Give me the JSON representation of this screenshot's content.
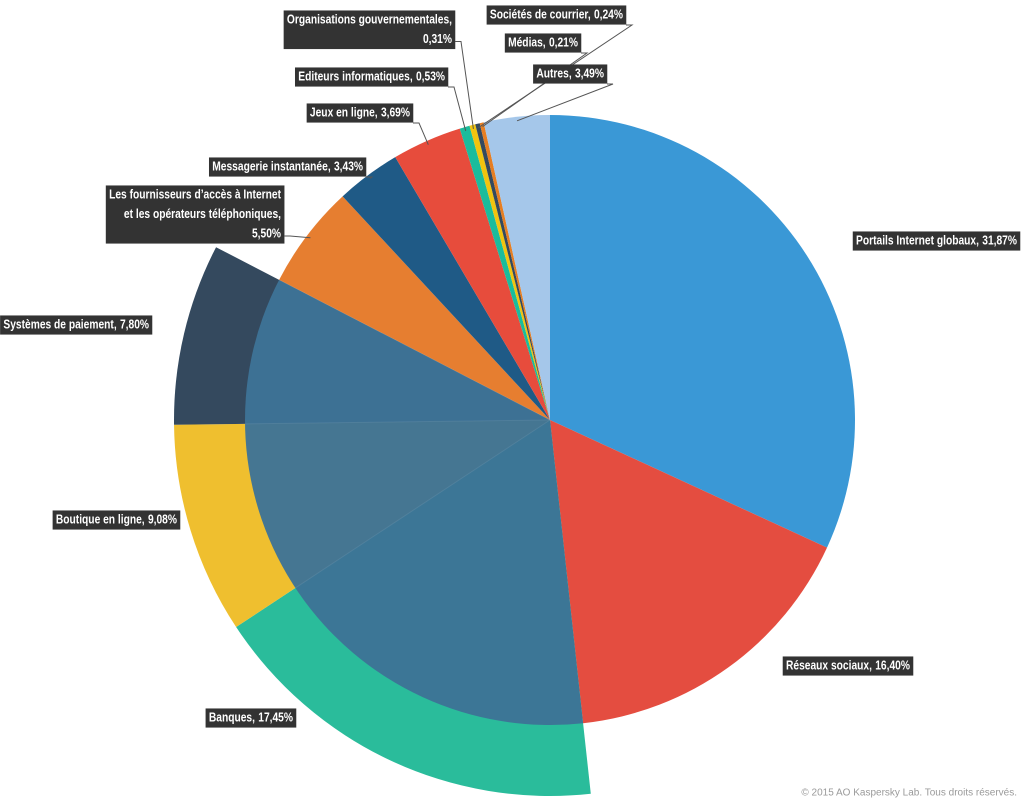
{
  "chart_data": {
    "type": "pie",
    "categories": [
      "Portails Internet globaux,",
      "Réseaux sociaux,",
      "Banques,",
      "Boutique en ligne,",
      "Systèmes de paiement,",
      "Les fournisseurs d’accès à Internet\net les opérateurs téléphoniques,",
      "Messagerie instantanée,",
      "Jeux en ligne,",
      "Editeurs informatiques,",
      "Organisations gouvernementales,",
      "Sociétés de courrier,",
      "Médias,",
      "Autres,"
    ],
    "values": [
      31.87,
      16.4,
      17.45,
      9.08,
      7.8,
      5.5,
      3.43,
      3.69,
      0.53,
      0.31,
      0.24,
      0.21,
      3.49
    ],
    "value_labels": [
      "31,87%",
      "16,40%",
      "17,45%",
      "9,08%",
      "7,80%",
      "5,50%",
      "3,43%",
      "3,69%",
      "0,53%",
      "0,31%",
      "0,24%",
      "0,21%",
      "3,49%"
    ],
    "colors": [
      "#3a98d6",
      "#e44d40",
      "#2abc9b",
      "#efbf2f",
      "#34495e",
      "#e67e30",
      "#1f5a86",
      "#e74c3c",
      "#1abc9c",
      "#f1c40f",
      "#34495e",
      "#e67e22",
      "#a5c7ea"
    ],
    "source": "© 2015 AO Kaspersky Lab. Tous droits réservés."
  }
}
